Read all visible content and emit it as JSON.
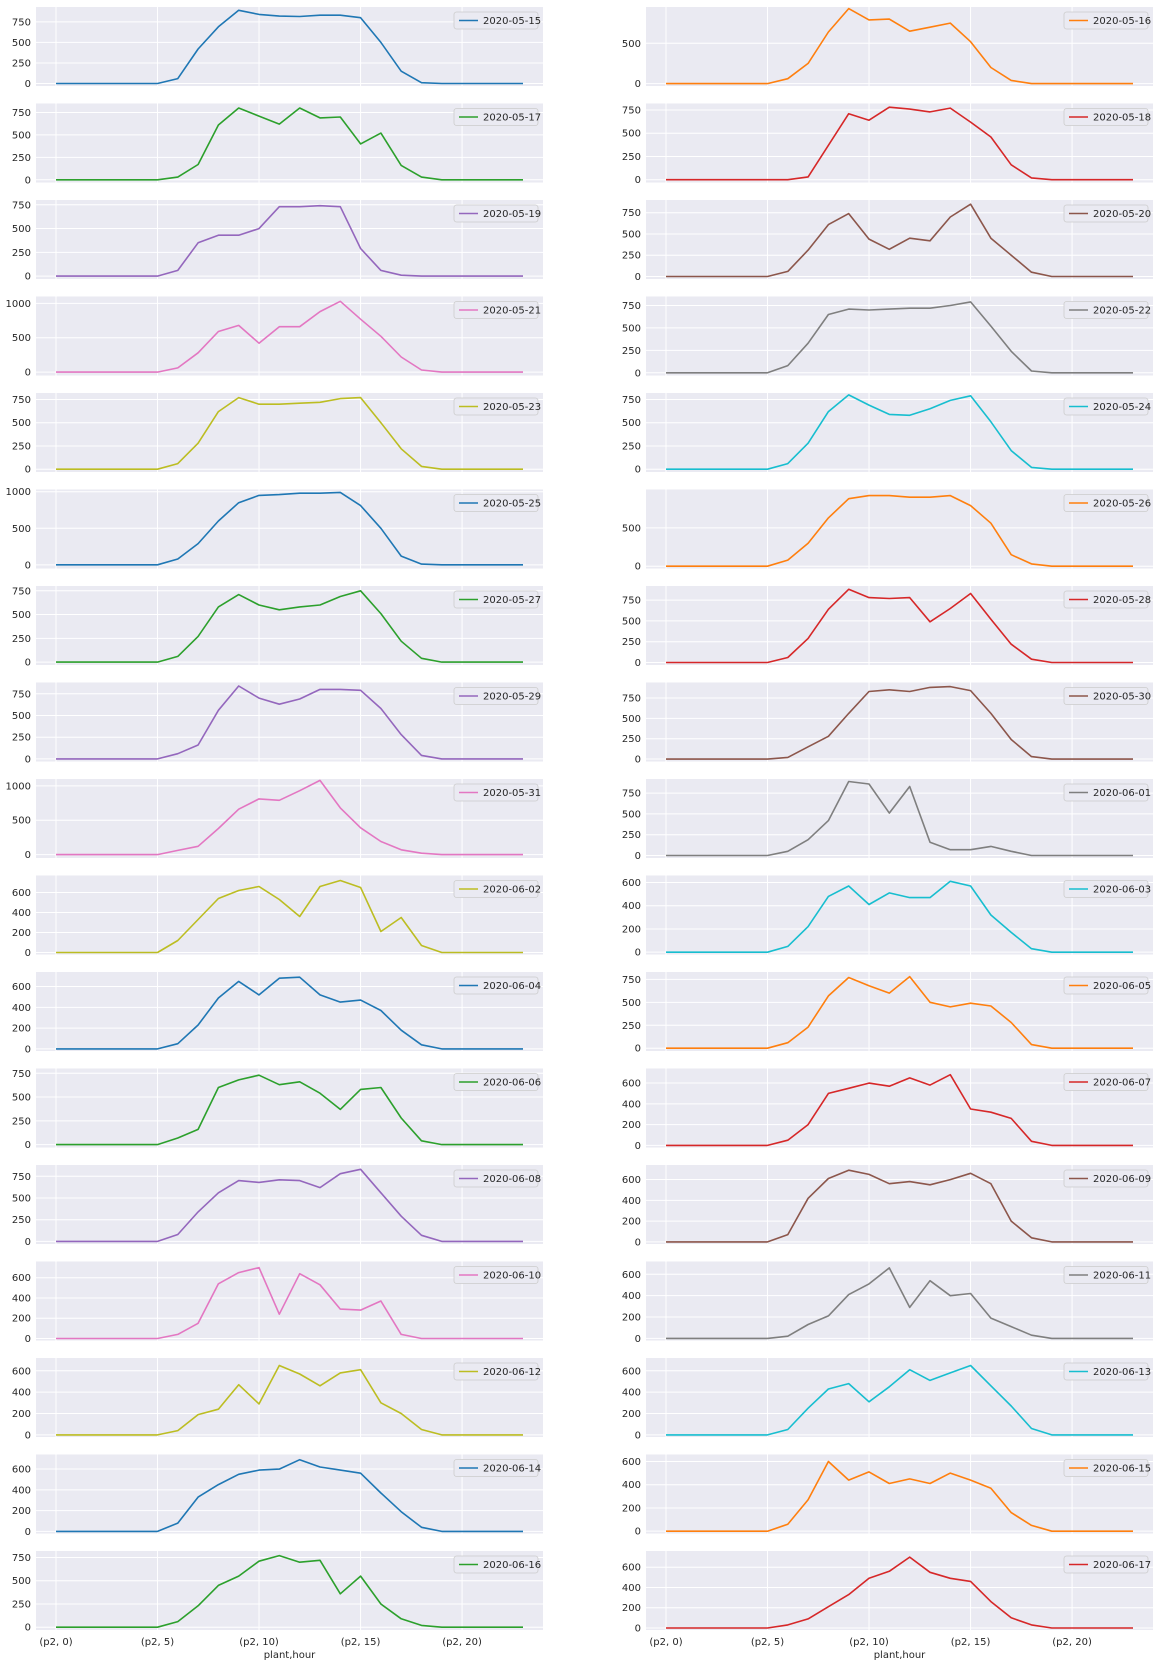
{
  "xlabel": "plant,hour",
  "x_tick_labels": [
    "(p2, 0)",
    "(p2, 5)",
    "(p2, 10)",
    "(p2, 15)",
    "(p2, 20)"
  ],
  "chart_data": [
    {
      "type": "line",
      "name": "2020-05-15",
      "color": "#1f77b4",
      "ylim": [
        -30,
        930
      ],
      "yticks": [
        0,
        250,
        500,
        750
      ],
      "values": [
        0,
        0,
        0,
        0,
        0,
        0,
        60,
        420,
        690,
        890,
        840,
        820,
        815,
        830,
        830,
        800,
        500,
        150,
        10,
        0,
        0,
        0,
        0,
        0
      ]
    },
    {
      "type": "line",
      "name": "2020-05-16",
      "color": "#ff7f0e",
      "ylim": [
        -30,
        950
      ],
      "yticks": [
        0,
        500
      ],
      "values": [
        0,
        0,
        0,
        0,
        0,
        0,
        60,
        250,
        640,
        930,
        790,
        800,
        650,
        700,
        750,
        520,
        200,
        40,
        0,
        0,
        0,
        0,
        0,
        0
      ]
    },
    {
      "type": "line",
      "name": "2020-05-17",
      "color": "#2ca02c",
      "ylim": [
        -30,
        850
      ],
      "yticks": [
        0,
        250,
        500,
        750
      ],
      "values": [
        0,
        0,
        0,
        0,
        0,
        0,
        30,
        170,
        610,
        800,
        710,
        620,
        800,
        690,
        700,
        400,
        520,
        160,
        30,
        0,
        0,
        0,
        0,
        0
      ]
    },
    {
      "type": "line",
      "name": "2020-05-18",
      "color": "#d62728",
      "ylim": [
        -30,
        820
      ],
      "yticks": [
        0,
        250,
        500,
        750
      ],
      "values": [
        0,
        0,
        0,
        0,
        0,
        0,
        0,
        30,
        370,
        710,
        640,
        780,
        760,
        730,
        770,
        620,
        460,
        160,
        20,
        0,
        0,
        0,
        0,
        0
      ]
    },
    {
      "type": "line",
      "name": "2020-05-19",
      "color": "#9467bd",
      "ylim": [
        -30,
        800
      ],
      "yticks": [
        0,
        250,
        500,
        750
      ],
      "values": [
        0,
        0,
        0,
        0,
        0,
        0,
        60,
        350,
        430,
        430,
        500,
        730,
        730,
        740,
        730,
        290,
        60,
        10,
        0,
        0,
        0,
        0,
        0,
        0
      ]
    },
    {
      "type": "line",
      "name": "2020-05-20",
      "color": "#8c564b",
      "ylim": [
        -30,
        900
      ],
      "yticks": [
        0,
        250,
        500,
        750
      ],
      "values": [
        0,
        0,
        0,
        0,
        0,
        0,
        60,
        310,
        610,
        740,
        440,
        320,
        450,
        420,
        700,
        850,
        450,
        250,
        50,
        0,
        0,
        0,
        0,
        0
      ]
    },
    {
      "type": "line",
      "name": "2020-05-21",
      "color": "#e377c2",
      "ylim": [
        -50,
        1100
      ],
      "yticks": [
        0,
        500,
        1000
      ],
      "values": [
        0,
        0,
        0,
        0,
        0,
        0,
        60,
        280,
        590,
        680,
        420,
        660,
        660,
        880,
        1030,
        770,
        520,
        220,
        30,
        0,
        0,
        0,
        0,
        0
      ]
    },
    {
      "type": "line",
      "name": "2020-05-22",
      "color": "#7f7f7f",
      "ylim": [
        -30,
        850
      ],
      "yticks": [
        0,
        250,
        500,
        750
      ],
      "values": [
        0,
        0,
        0,
        0,
        0,
        0,
        80,
        330,
        650,
        710,
        700,
        710,
        720,
        720,
        750,
        790,
        520,
        240,
        20,
        0,
        0,
        0,
        0,
        0
      ]
    },
    {
      "type": "line",
      "name": "2020-05-23",
      "color": "#bcbd22",
      "ylim": [
        -30,
        820
      ],
      "yticks": [
        0,
        250,
        500,
        750
      ],
      "values": [
        0,
        0,
        0,
        0,
        0,
        0,
        60,
        280,
        620,
        770,
        700,
        700,
        710,
        720,
        760,
        770,
        500,
        220,
        30,
        0,
        0,
        0,
        0,
        0
      ]
    },
    {
      "type": "line",
      "name": "2020-05-24",
      "color": "#17becf",
      "ylim": [
        -30,
        820
      ],
      "yticks": [
        0,
        250,
        500,
        750
      ],
      "values": [
        0,
        0,
        0,
        0,
        0,
        0,
        60,
        280,
        620,
        800,
        690,
        590,
        580,
        650,
        740,
        790,
        510,
        200,
        20,
        0,
        0,
        0,
        0,
        0
      ]
    },
    {
      "type": "line",
      "name": "2020-05-25",
      "color": "#1f77b4",
      "ylim": [
        -50,
        1030
      ],
      "yticks": [
        0,
        500,
        1000
      ],
      "values": [
        0,
        0,
        0,
        0,
        0,
        0,
        80,
        290,
        600,
        850,
        950,
        960,
        980,
        980,
        990,
        810,
        500,
        120,
        10,
        0,
        0,
        0,
        0,
        0
      ]
    },
    {
      "type": "line",
      "name": "2020-05-26",
      "color": "#ff7f0e",
      "ylim": [
        -30,
        1000
      ],
      "yticks": [
        0,
        500
      ],
      "values": [
        0,
        0,
        0,
        0,
        0,
        0,
        80,
        300,
        630,
        880,
        920,
        920,
        900,
        900,
        920,
        790,
        560,
        150,
        30,
        0,
        0,
        0,
        0,
        0
      ]
    },
    {
      "type": "line",
      "name": "2020-05-27",
      "color": "#2ca02c",
      "ylim": [
        -30,
        800
      ],
      "yticks": [
        0,
        250,
        500,
        750
      ],
      "values": [
        0,
        0,
        0,
        0,
        0,
        0,
        60,
        270,
        580,
        710,
        600,
        550,
        580,
        600,
        690,
        750,
        510,
        220,
        40,
        0,
        0,
        0,
        0,
        0
      ]
    },
    {
      "type": "line",
      "name": "2020-05-28",
      "color": "#d62728",
      "ylim": [
        -30,
        920
      ],
      "yticks": [
        0,
        250,
        500,
        750
      ],
      "values": [
        0,
        0,
        0,
        0,
        0,
        0,
        60,
        290,
        640,
        880,
        780,
        770,
        780,
        490,
        650,
        830,
        520,
        220,
        40,
        0,
        0,
        0,
        0,
        0
      ]
    },
    {
      "type": "line",
      "name": "2020-05-29",
      "color": "#9467bd",
      "ylim": [
        -30,
        880
      ],
      "yticks": [
        0,
        250,
        500,
        750
      ],
      "values": [
        0,
        0,
        0,
        0,
        0,
        0,
        60,
        160,
        560,
        840,
        700,
        630,
        690,
        800,
        800,
        790,
        580,
        280,
        40,
        0,
        0,
        0,
        0,
        0
      ]
    },
    {
      "type": "line",
      "name": "2020-05-30",
      "color": "#8c564b",
      "ylim": [
        -30,
        940
      ],
      "yticks": [
        0,
        250,
        500,
        750
      ],
      "values": [
        0,
        0,
        0,
        0,
        0,
        0,
        20,
        150,
        280,
        560,
        830,
        850,
        830,
        880,
        890,
        840,
        560,
        240,
        30,
        0,
        0,
        0,
        0,
        0
      ]
    },
    {
      "type": "line",
      "name": "2020-05-31",
      "color": "#e377c2",
      "ylim": [
        -50,
        1100
      ],
      "yticks": [
        0,
        500,
        1000
      ],
      "values": [
        0,
        0,
        0,
        0,
        0,
        0,
        60,
        120,
        380,
        660,
        810,
        790,
        930,
        1080,
        680,
        390,
        190,
        70,
        20,
        0,
        0,
        0,
        0,
        0
      ]
    },
    {
      "type": "line",
      "name": "2020-06-01",
      "color": "#7f7f7f",
      "ylim": [
        -30,
        920
      ],
      "yticks": [
        0,
        250,
        500,
        750
      ],
      "values": [
        0,
        0,
        0,
        0,
        0,
        0,
        50,
        190,
        420,
        890,
        860,
        510,
        830,
        160,
        70,
        70,
        110,
        50,
        0,
        0,
        0,
        0,
        0,
        0
      ]
    },
    {
      "type": "line",
      "name": "2020-06-02",
      "color": "#bcbd22",
      "ylim": [
        -20,
        770
      ],
      "yticks": [
        0,
        200,
        400,
        600
      ],
      "values": [
        0,
        0,
        0,
        0,
        0,
        0,
        120,
        330,
        540,
        620,
        660,
        530,
        360,
        660,
        720,
        650,
        210,
        350,
        70,
        0,
        0,
        0,
        0,
        0
      ]
    },
    {
      "type": "line",
      "name": "2020-06-03",
      "color": "#17becf",
      "ylim": [
        -20,
        660
      ],
      "yticks": [
        0,
        200,
        400,
        600
      ],
      "values": [
        0,
        0,
        0,
        0,
        0,
        0,
        50,
        220,
        480,
        570,
        410,
        510,
        470,
        470,
        610,
        570,
        320,
        170,
        30,
        0,
        0,
        0,
        0,
        0
      ]
    },
    {
      "type": "line",
      "name": "2020-06-04",
      "color": "#1f77b4",
      "ylim": [
        -20,
        740
      ],
      "yticks": [
        0,
        200,
        400,
        600
      ],
      "values": [
        0,
        0,
        0,
        0,
        0,
        0,
        50,
        230,
        490,
        650,
        520,
        680,
        690,
        520,
        450,
        470,
        370,
        180,
        40,
        0,
        0,
        0,
        0,
        0
      ]
    },
    {
      "type": "line",
      "name": "2020-06-05",
      "color": "#ff7f0e",
      "ylim": [
        -30,
        830
      ],
      "yticks": [
        0,
        250,
        500,
        750
      ],
      "values": [
        0,
        0,
        0,
        0,
        0,
        0,
        60,
        230,
        570,
        770,
        680,
        600,
        780,
        500,
        450,
        490,
        460,
        280,
        40,
        0,
        0,
        0,
        0,
        0
      ]
    },
    {
      "type": "line",
      "name": "2020-06-06",
      "color": "#2ca02c",
      "ylim": [
        -30,
        800
      ],
      "yticks": [
        0,
        250,
        500,
        750
      ],
      "values": [
        0,
        0,
        0,
        0,
        0,
        0,
        70,
        160,
        600,
        680,
        730,
        630,
        660,
        540,
        370,
        580,
        600,
        280,
        40,
        0,
        0,
        0,
        0,
        0
      ]
    },
    {
      "type": "line",
      "name": "2020-06-07",
      "color": "#d62728",
      "ylim": [
        -20,
        740
      ],
      "yticks": [
        0,
        200,
        400,
        600
      ],
      "values": [
        0,
        0,
        0,
        0,
        0,
        0,
        50,
        200,
        500,
        550,
        600,
        570,
        650,
        580,
        680,
        350,
        320,
        260,
        40,
        0,
        0,
        0,
        0,
        0
      ]
    },
    {
      "type": "line",
      "name": "2020-06-08",
      "color": "#9467bd",
      "ylim": [
        -30,
        880
      ],
      "yticks": [
        0,
        250,
        500,
        750
      ],
      "values": [
        0,
        0,
        0,
        0,
        0,
        0,
        80,
        340,
        560,
        700,
        680,
        710,
        700,
        620,
        780,
        830,
        560,
        290,
        70,
        0,
        0,
        0,
        0,
        0
      ]
    },
    {
      "type": "line",
      "name": "2020-06-09",
      "color": "#8c564b",
      "ylim": [
        -20,
        740
      ],
      "yticks": [
        0,
        200,
        400,
        600
      ],
      "values": [
        0,
        0,
        0,
        0,
        0,
        0,
        70,
        420,
        610,
        690,
        650,
        560,
        580,
        550,
        600,
        660,
        560,
        200,
        40,
        0,
        0,
        0,
        0,
        0
      ]
    },
    {
      "type": "line",
      "name": "2020-06-10",
      "color": "#e377c2",
      "ylim": [
        -20,
        760
      ],
      "yticks": [
        0,
        200,
        400,
        600
      ],
      "values": [
        0,
        0,
        0,
        0,
        0,
        0,
        40,
        150,
        540,
        650,
        700,
        240,
        640,
        530,
        290,
        280,
        370,
        40,
        0,
        0,
        0,
        0,
        0,
        0
      ]
    },
    {
      "type": "line",
      "name": "2020-06-11",
      "color": "#7f7f7f",
      "ylim": [
        -20,
        720
      ],
      "yticks": [
        0,
        200,
        400,
        600
      ],
      "values": [
        0,
        0,
        0,
        0,
        0,
        0,
        20,
        130,
        210,
        410,
        510,
        660,
        290,
        540,
        400,
        420,
        190,
        110,
        30,
        0,
        0,
        0,
        0,
        0
      ]
    },
    {
      "type": "line",
      "name": "2020-06-12",
      "color": "#bcbd22",
      "ylim": [
        -20,
        720
      ],
      "yticks": [
        0,
        200,
        400,
        600
      ],
      "values": [
        0,
        0,
        0,
        0,
        0,
        0,
        40,
        190,
        240,
        470,
        290,
        650,
        570,
        460,
        580,
        610,
        300,
        200,
        50,
        0,
        0,
        0,
        0,
        0
      ]
    },
    {
      "type": "line",
      "name": "2020-06-13",
      "color": "#17becf",
      "ylim": [
        -20,
        720
      ],
      "yticks": [
        0,
        200,
        400,
        600
      ],
      "values": [
        0,
        0,
        0,
        0,
        0,
        0,
        50,
        250,
        430,
        480,
        310,
        450,
        610,
        510,
        580,
        650,
        460,
        270,
        60,
        0,
        0,
        0,
        0,
        0
      ]
    },
    {
      "type": "line",
      "name": "2020-06-14",
      "color": "#1f77b4",
      "ylim": [
        -20,
        740
      ],
      "yticks": [
        0,
        200,
        400,
        600
      ],
      "values": [
        0,
        0,
        0,
        0,
        0,
        0,
        80,
        330,
        450,
        550,
        590,
        600,
        690,
        620,
        590,
        560,
        370,
        190,
        40,
        0,
        0,
        0,
        0,
        0
      ]
    },
    {
      "type": "line",
      "name": "2020-06-15",
      "color": "#ff7f0e",
      "ylim": [
        -20,
        660
      ],
      "yticks": [
        0,
        200,
        400,
        600
      ],
      "values": [
        0,
        0,
        0,
        0,
        0,
        0,
        60,
        270,
        600,
        440,
        510,
        410,
        450,
        410,
        500,
        440,
        370,
        160,
        50,
        0,
        0,
        0,
        0,
        0
      ]
    },
    {
      "type": "line",
      "name": "2020-06-16",
      "color": "#2ca02c",
      "ylim": [
        -30,
        820
      ],
      "yticks": [
        0,
        250,
        500,
        750
      ],
      "values": [
        0,
        0,
        0,
        0,
        0,
        0,
        60,
        230,
        450,
        550,
        710,
        770,
        700,
        720,
        360,
        550,
        250,
        90,
        20,
        0,
        0,
        0,
        0,
        0
      ]
    },
    {
      "type": "line",
      "name": "2020-06-17",
      "color": "#d62728",
      "ylim": [
        -20,
        760
      ],
      "yticks": [
        0,
        200,
        400,
        600
      ],
      "values": [
        0,
        0,
        0,
        0,
        0,
        0,
        30,
        90,
        210,
        330,
        490,
        560,
        700,
        550,
        490,
        460,
        260,
        100,
        30,
        0,
        0,
        0,
        0,
        0
      ]
    }
  ]
}
